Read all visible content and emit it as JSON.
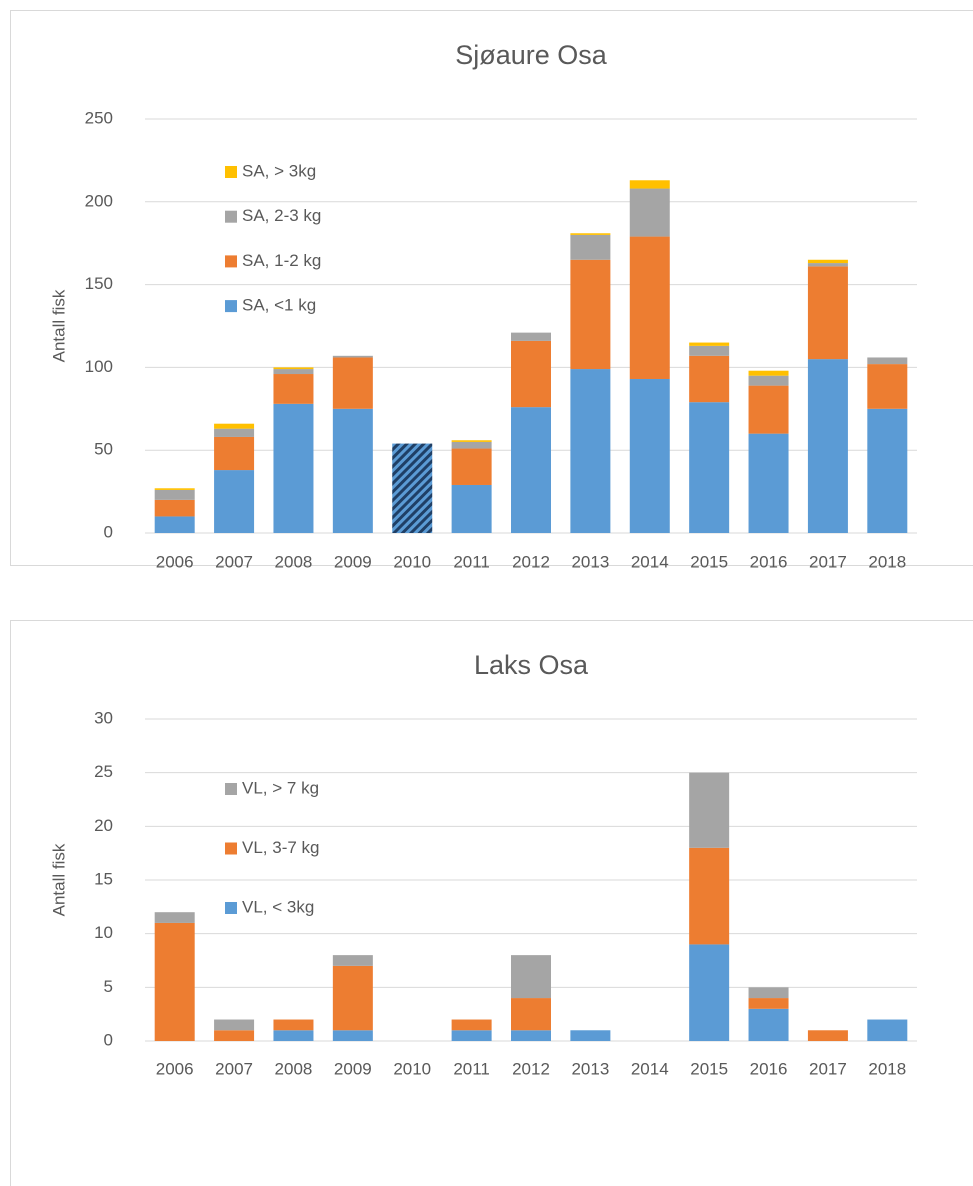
{
  "chart_data": [
    {
      "type": "stacked_bar",
      "title": "Sjøaure Osa",
      "y_label": "Antall fisk",
      "categories": [
        "2006",
        "2007",
        "2008",
        "2009",
        "2010",
        "2011",
        "2012",
        "2013",
        "2014",
        "2015",
        "2016",
        "2017",
        "2018"
      ],
      "series": [
        {
          "name": "SA, <1 kg",
          "color": "#5b9bd5",
          "values": [
            10,
            38,
            78,
            75,
            54,
            29,
            76,
            99,
            93,
            79,
            60,
            105,
            75
          ]
        },
        {
          "name": "SA, 1-2 kg",
          "color": "#ed7d31",
          "values": [
            10,
            20,
            18,
            31,
            0,
            22,
            40,
            66,
            86,
            28,
            29,
            56,
            27
          ]
        },
        {
          "name": "SA, 2-3 kg",
          "color": "#a5a5a5",
          "values": [
            6,
            5,
            3,
            1,
            0,
            4,
            5,
            15,
            29,
            6,
            6,
            2,
            4
          ]
        },
        {
          "name": "SA, > 3kg",
          "color": "#ffc000",
          "values": [
            1,
            3,
            1,
            0,
            0,
            1,
            0,
            1,
            5,
            2,
            3,
            2,
            0
          ]
        }
      ],
      "hatched_index": [
        4
      ],
      "ylim": [
        0,
        250
      ],
      "yticks": [
        0,
        50,
        100,
        150,
        200,
        250
      ],
      "grid": true
    },
    {
      "type": "stacked_bar",
      "title": "Laks Osa",
      "y_label": "Antall fisk",
      "categories": [
        "2006",
        "2007",
        "2008",
        "2009",
        "2010",
        "2011",
        "2012",
        "2013",
        "2014",
        "2015",
        "2016",
        "2017",
        "2018"
      ],
      "series": [
        {
          "name": "VL, < 3kg",
          "color": "#5b9bd5",
          "values": [
            0,
            0,
            1,
            1,
            0,
            1,
            1,
            1,
            0,
            9,
            3,
            0,
            2
          ]
        },
        {
          "name": "VL, 3-7 kg",
          "color": "#ed7d31",
          "values": [
            11,
            1,
            1,
            6,
            0,
            1,
            3,
            0,
            0,
            9,
            1,
            1,
            0
          ]
        },
        {
          "name": "VL, > 7 kg",
          "color": "#a5a5a5",
          "values": [
            1,
            1,
            0,
            1,
            0,
            0,
            4,
            0,
            0,
            7,
            1,
            0,
            0
          ]
        }
      ],
      "ylim": [
        0,
        30
      ],
      "yticks": [
        0,
        5,
        10,
        15,
        20,
        25,
        30
      ],
      "grid": true
    }
  ]
}
